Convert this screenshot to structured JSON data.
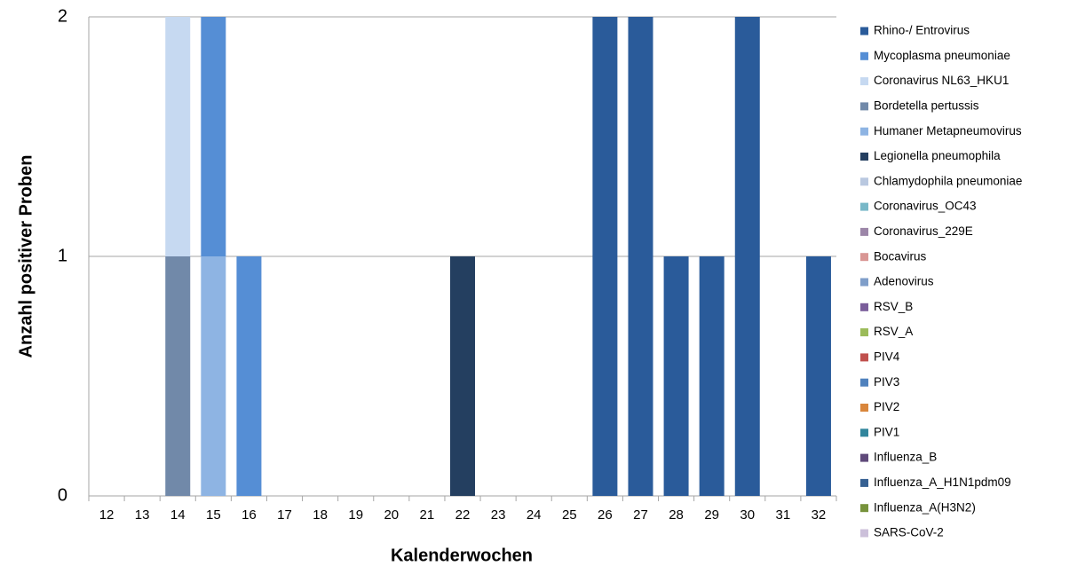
{
  "chart_data": {
    "type": "bar",
    "stacked": true,
    "x_label": "Kalenderwochen",
    "y_label": "Anzahl positiver Proben",
    "categories": [
      "12",
      "13",
      "14",
      "15",
      "16",
      "17",
      "18",
      "19",
      "20",
      "21",
      "22",
      "23",
      "24",
      "25",
      "26",
      "27",
      "28",
      "29",
      "30",
      "31",
      "32"
    ],
    "ylim": [
      0,
      2
    ],
    "yticks": [
      0,
      1,
      2
    ],
    "grid": true,
    "legend": "right",
    "series": [
      {
        "name": "Rhino-/ Entrovirus",
        "color": "#2a5b9a",
        "values": [
          0,
          0,
          0,
          0,
          0,
          0,
          0,
          0,
          0,
          0,
          0,
          0,
          0,
          0,
          2,
          2,
          1,
          1,
          2,
          0,
          1
        ]
      },
      {
        "name": "Mycoplasma pneumoniae",
        "color": "#558ed5",
        "values": [
          0,
          0,
          0,
          1,
          1,
          0,
          0,
          0,
          0,
          0,
          0,
          0,
          0,
          0,
          0,
          0,
          0,
          0,
          0,
          0,
          0
        ]
      },
      {
        "name": "Coronavirus NL63_HKU1",
        "color": "#c6d9f1",
        "values": [
          0,
          0,
          1,
          0,
          0,
          0,
          0,
          0,
          0,
          0,
          0,
          0,
          0,
          0,
          0,
          0,
          0,
          0,
          0,
          0,
          0
        ]
      },
      {
        "name": "Bordetella pertussis",
        "color": "#7189a9",
        "values": [
          0,
          0,
          1,
          0,
          0,
          0,
          0,
          0,
          0,
          0,
          0,
          0,
          0,
          0,
          0,
          0,
          0,
          0,
          0,
          0,
          0
        ]
      },
      {
        "name": "Humaner Metapneumovirus",
        "color": "#8eb4e3",
        "values": [
          0,
          0,
          0,
          1,
          0,
          0,
          0,
          0,
          0,
          0,
          0,
          0,
          0,
          0,
          0,
          0,
          0,
          0,
          0,
          0,
          0
        ]
      },
      {
        "name": "Legionella pneumophila",
        "color": "#243f60",
        "values": [
          0,
          0,
          0,
          0,
          0,
          0,
          0,
          0,
          0,
          0,
          1,
          0,
          0,
          0,
          0,
          0,
          0,
          0,
          0,
          0,
          0
        ]
      },
      {
        "name": "Chlamydophila pneumoniae",
        "color": "#b9c8e0",
        "values": [
          0,
          0,
          0,
          0,
          0,
          0,
          0,
          0,
          0,
          0,
          0,
          0,
          0,
          0,
          0,
          0,
          0,
          0,
          0,
          0,
          0
        ]
      },
      {
        "name": "Coronavirus_OC43",
        "color": "#78b8c8",
        "values": [
          0,
          0,
          0,
          0,
          0,
          0,
          0,
          0,
          0,
          0,
          0,
          0,
          0,
          0,
          0,
          0,
          0,
          0,
          0,
          0,
          0
        ]
      },
      {
        "name": "Coronavirus_229E",
        "color": "#9c86a8",
        "values": [
          0,
          0,
          0,
          0,
          0,
          0,
          0,
          0,
          0,
          0,
          0,
          0,
          0,
          0,
          0,
          0,
          0,
          0,
          0,
          0,
          0
        ]
      },
      {
        "name": "Bocavirus",
        "color": "#d99694",
        "values": [
          0,
          0,
          0,
          0,
          0,
          0,
          0,
          0,
          0,
          0,
          0,
          0,
          0,
          0,
          0,
          0,
          0,
          0,
          0,
          0,
          0
        ]
      },
      {
        "name": "Adenovirus",
        "color": "#7f9ec9",
        "values": [
          0,
          0,
          0,
          0,
          0,
          0,
          0,
          0,
          0,
          0,
          0,
          0,
          0,
          0,
          0,
          0,
          0,
          0,
          0,
          0,
          0
        ]
      },
      {
        "name": "RSV_B",
        "color": "#7a5d9a",
        "values": [
          0,
          0,
          0,
          0,
          0,
          0,
          0,
          0,
          0,
          0,
          0,
          0,
          0,
          0,
          0,
          0,
          0,
          0,
          0,
          0,
          0
        ]
      },
      {
        "name": "RSV_A",
        "color": "#9bbb59",
        "values": [
          0,
          0,
          0,
          0,
          0,
          0,
          0,
          0,
          0,
          0,
          0,
          0,
          0,
          0,
          0,
          0,
          0,
          0,
          0,
          0,
          0
        ]
      },
      {
        "name": "PIV4",
        "color": "#c0504d",
        "values": [
          0,
          0,
          0,
          0,
          0,
          0,
          0,
          0,
          0,
          0,
          0,
          0,
          0,
          0,
          0,
          0,
          0,
          0,
          0,
          0,
          0
        ]
      },
      {
        "name": "PIV3",
        "color": "#4f81bd",
        "values": [
          0,
          0,
          0,
          0,
          0,
          0,
          0,
          0,
          0,
          0,
          0,
          0,
          0,
          0,
          0,
          0,
          0,
          0,
          0,
          0,
          0
        ]
      },
      {
        "name": "PIV2",
        "color": "#d9863c",
        "values": [
          0,
          0,
          0,
          0,
          0,
          0,
          0,
          0,
          0,
          0,
          0,
          0,
          0,
          0,
          0,
          0,
          0,
          0,
          0,
          0,
          0
        ]
      },
      {
        "name": "PIV1",
        "color": "#31859c",
        "values": [
          0,
          0,
          0,
          0,
          0,
          0,
          0,
          0,
          0,
          0,
          0,
          0,
          0,
          0,
          0,
          0,
          0,
          0,
          0,
          0,
          0
        ]
      },
      {
        "name": "Influenza_B",
        "color": "#5f497a",
        "values": [
          0,
          0,
          0,
          0,
          0,
          0,
          0,
          0,
          0,
          0,
          0,
          0,
          0,
          0,
          0,
          0,
          0,
          0,
          0,
          0,
          0
        ]
      },
      {
        "name": "Influenza_A_H1N1pdm09",
        "color": "#366092",
        "values": [
          0,
          0,
          0,
          0,
          0,
          0,
          0,
          0,
          0,
          0,
          0,
          0,
          0,
          0,
          0,
          0,
          0,
          0,
          0,
          0,
          0
        ]
      },
      {
        "name": "Influenza_A(H3N2)",
        "color": "#77933c",
        "values": [
          0,
          0,
          0,
          0,
          0,
          0,
          0,
          0,
          0,
          0,
          0,
          0,
          0,
          0,
          0,
          0,
          0,
          0,
          0,
          0,
          0
        ]
      },
      {
        "name": "SARS-CoV-2",
        "color": "#ccc0da",
        "values": [
          0,
          0,
          0,
          0,
          0,
          0,
          0,
          0,
          0,
          0,
          0,
          0,
          0,
          0,
          0,
          0,
          0,
          0,
          0,
          0,
          0
        ]
      }
    ]
  }
}
